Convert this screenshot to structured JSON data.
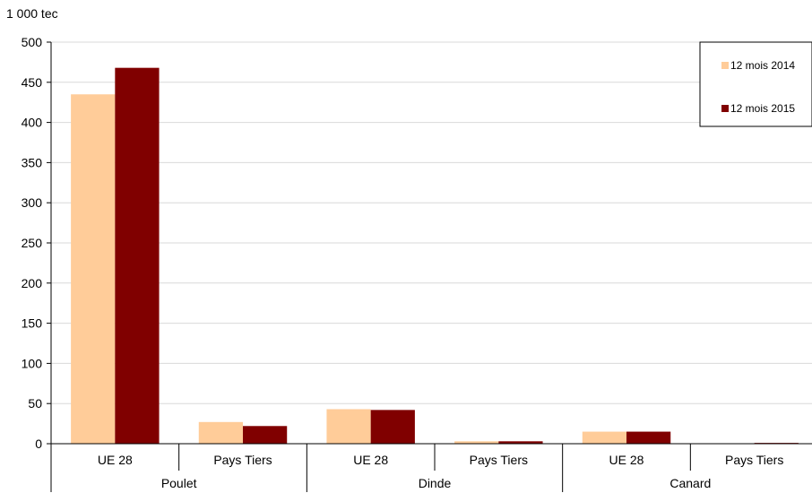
{
  "chart_data": {
    "type": "bar",
    "unit_label": "1 000 tec",
    "groups": [
      {
        "name": "Poulet",
        "categories": [
          "UE 28",
          "Pays Tiers"
        ]
      },
      {
        "name": "Dinde",
        "categories": [
          "UE 28",
          "Pays Tiers"
        ]
      },
      {
        "name": "Canard",
        "categories": [
          "UE 28",
          "Pays Tiers"
        ]
      }
    ],
    "series": [
      {
        "name": "12 mois 2014",
        "color": "#FFCC99",
        "values": [
          435,
          27,
          43,
          3,
          15,
          0.5
        ]
      },
      {
        "name": "12 mois 2015",
        "color": "#800000",
        "values": [
          468,
          22,
          42,
          3,
          15,
          1
        ]
      }
    ],
    "ylim": [
      0,
      500
    ],
    "yticks": [
      "0",
      "50",
      "100",
      "150",
      "200",
      "250",
      "300",
      "350",
      "400",
      "450",
      "500"
    ],
    "grid": true,
    "grid_color": "#D9D9D9",
    "legend_position": "top-right"
  }
}
